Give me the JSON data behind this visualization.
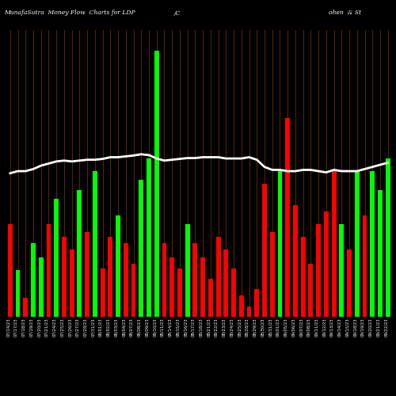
{
  "title_left": "MunafaSutra  Money Flow  Charts for LDP",
  "title_mid": "/C",
  "title_right": "ohen  & St",
  "bg_color": "#000000",
  "bar_line_color": "#5a2800",
  "green_color": "#00ff00",
  "red_color": "#ff0000",
  "white_line_color": "#ffffff",
  "n_bars": 50,
  "bar_colors": [
    "red",
    "green",
    "red",
    "green",
    "green",
    "red",
    "green",
    "red",
    "red",
    "green",
    "red",
    "green",
    "red",
    "red",
    "green",
    "red",
    "red",
    "green",
    "green",
    "green",
    "red",
    "red",
    "red",
    "green",
    "red",
    "red",
    "red",
    "red",
    "red",
    "red",
    "red",
    "red",
    "red",
    "red",
    "red",
    "green",
    "red",
    "red",
    "red",
    "red",
    "red",
    "red",
    "red",
    "green",
    "red",
    "green",
    "red",
    "green",
    "green",
    "green"
  ],
  "bar_heights": [
    220,
    110,
    45,
    175,
    140,
    220,
    280,
    190,
    160,
    300,
    200,
    345,
    115,
    190,
    240,
    175,
    125,
    325,
    375,
    630,
    175,
    140,
    115,
    220,
    175,
    140,
    90,
    190,
    160,
    115,
    50,
    25,
    65,
    315,
    200,
    345,
    470,
    265,
    190,
    125,
    220,
    250,
    345,
    220,
    160,
    345,
    240,
    345,
    300,
    375
  ],
  "line_y": [
    340,
    345,
    345,
    350,
    358,
    363,
    368,
    370,
    368,
    370,
    372,
    372,
    374,
    378,
    378,
    380,
    382,
    385,
    383,
    375,
    370,
    372,
    374,
    376,
    376,
    378,
    378,
    378,
    375,
    375,
    375,
    378,
    372,
    355,
    348,
    348,
    345,
    345,
    348,
    348,
    345,
    342,
    348,
    345,
    345,
    345,
    350,
    355,
    360,
    365
  ],
  "x_labels": [
    "07/14/23",
    "07/17/23",
    "07/18/23",
    "07/19/23",
    "07/20/23",
    "07/21/23",
    "07/24/23",
    "07/25/23",
    "07/26/23",
    "07/27/23",
    "07/28/23",
    "07/31/23",
    "08/01/23",
    "08/02/23",
    "08/03/23",
    "08/04/23",
    "08/07/23",
    "08/08/23",
    "08/09/23",
    "08/10/23",
    "08/11/23",
    "08/14/23",
    "08/15/23",
    "08/16/23",
    "08/17/23",
    "08/18/23",
    "08/21/23",
    "08/22/23",
    "08/23/23",
    "08/24/23",
    "08/25/23",
    "08/28/23",
    "08/29/23",
    "08/30/23",
    "08/31/23",
    "09/01/23",
    "09/05/23",
    "09/06/23",
    "09/07/23",
    "09/08/23",
    "09/11/23",
    "09/12/23",
    "09/13/23",
    "09/14/23",
    "09/15/23",
    "09/18/23",
    "09/19/23",
    "09/20/23",
    "09/21/23",
    "09/22/23"
  ],
  "y_max": 680,
  "figsize": [
    5.0,
    5.0
  ],
  "dpi": 100
}
